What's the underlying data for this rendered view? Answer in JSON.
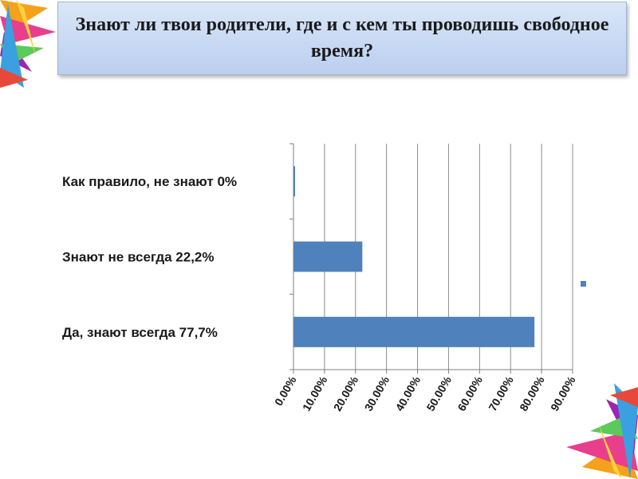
{
  "slide": {
    "title": "Знают ли твои родители, где и с кем ты проводишь свободное время?"
  },
  "chart_data": {
    "type": "bar",
    "orientation": "horizontal",
    "categories": [
      "Как правило, не знают 0%",
      "Знают не всегда  22,2%",
      "Да, знают всегда  77,7%"
    ],
    "values": [
      0.0,
      0.222,
      0.777
    ],
    "xlim": [
      0.0,
      0.9
    ],
    "tick_values": [
      0.0,
      0.1,
      0.2,
      0.3,
      0.4,
      0.5,
      0.6,
      0.7,
      0.8,
      0.9
    ],
    "tick_labels": [
      "0.00%",
      "10.00%",
      "20.00%",
      "30.00%",
      "40.00%",
      "50.00%",
      "60.00%",
      "70.00%",
      "80.00%",
      "90.00%"
    ],
    "grid": true,
    "legend": "right",
    "bar_color": "#4f81bd"
  }
}
